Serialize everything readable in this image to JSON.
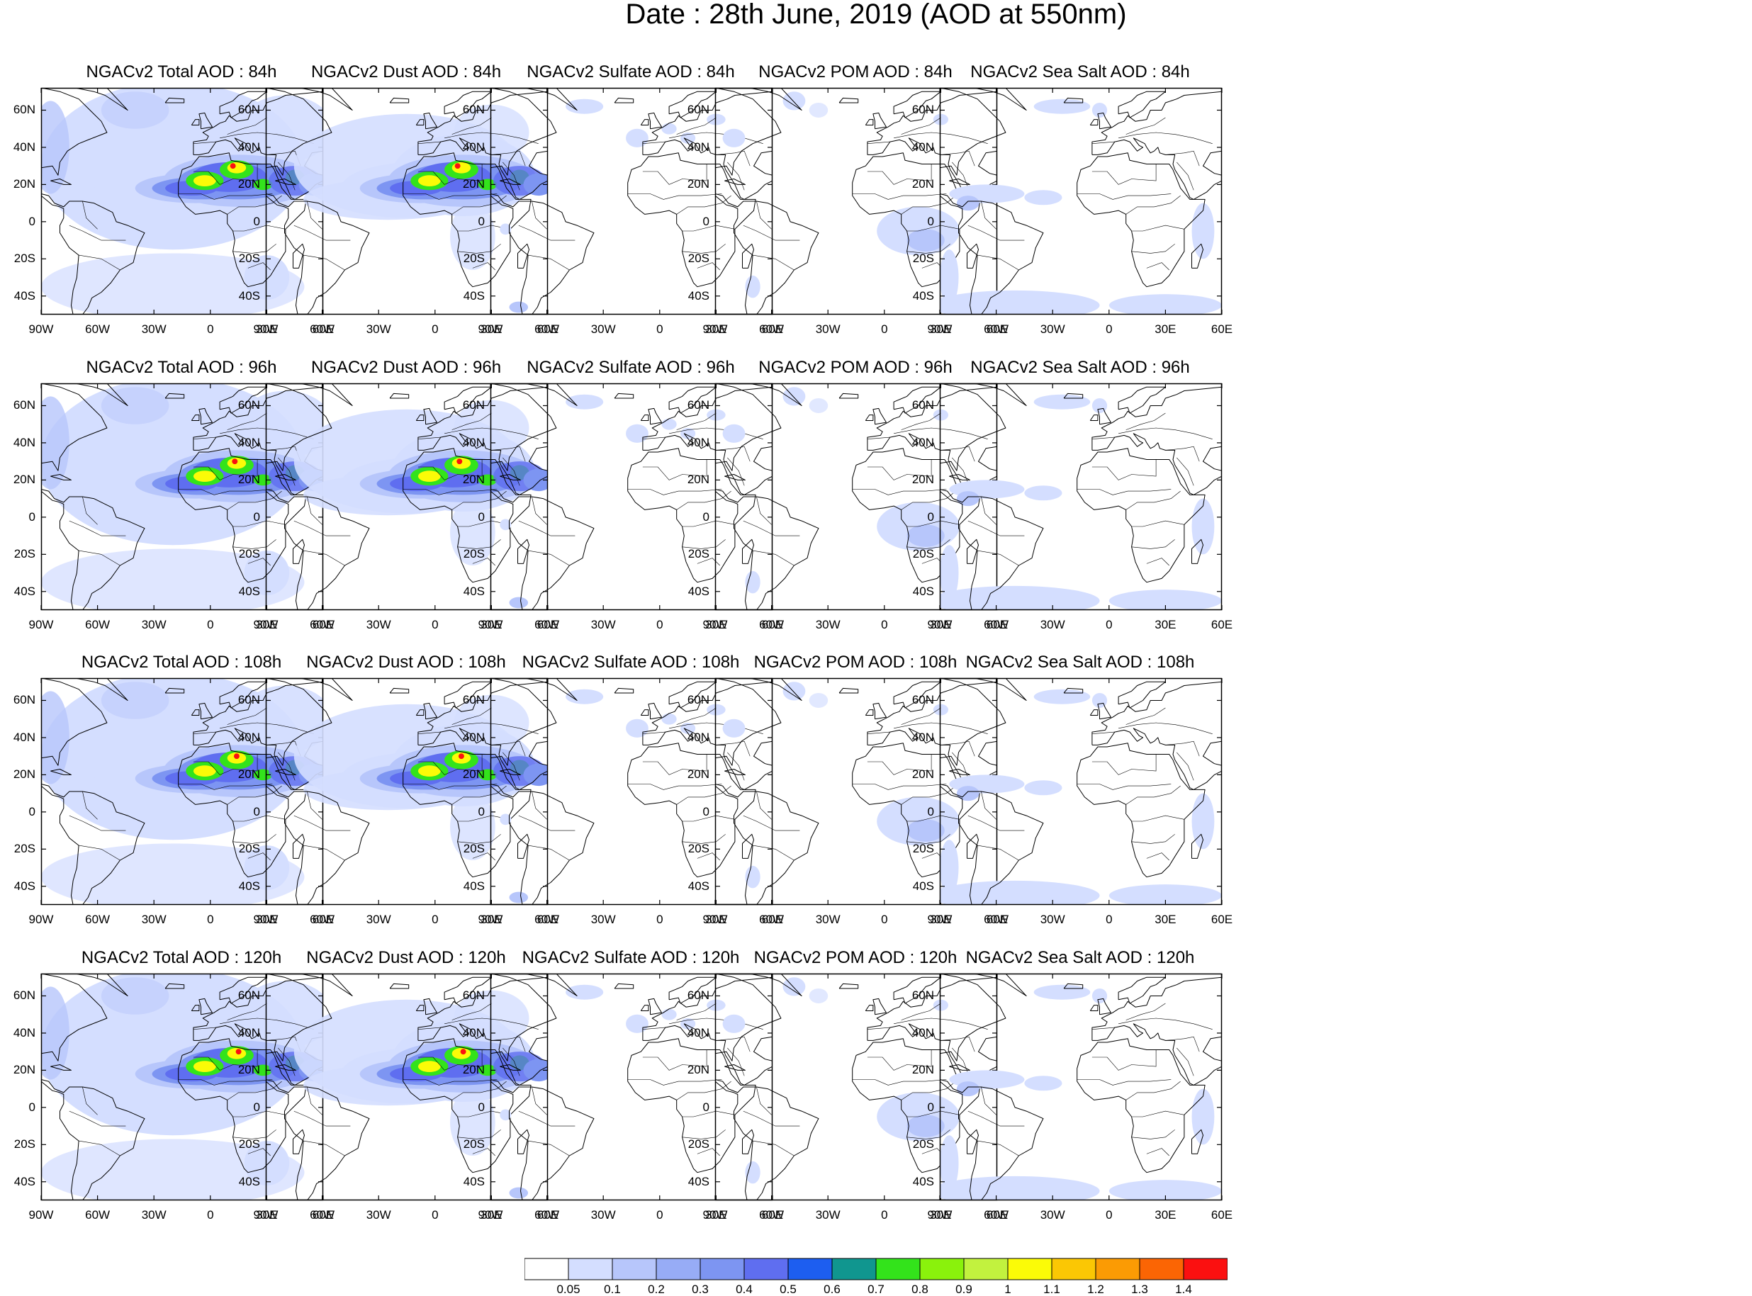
{
  "figure": {
    "title": "Date : 28th June, 2019 (AOD at 550nm)"
  },
  "rows": [
    "84h",
    "96h",
    "108h",
    "120h"
  ],
  "panel_titles": [
    [
      "NGACv2 Total AOD : 84h",
      "NGACv2 Dust AOD : 84h",
      "NGACv2 Sulfate AOD : 84h",
      "NGACv2 POM AOD : 84h",
      "NGACv2 Sea Salt AOD : 84h"
    ],
    [
      "NGACv2 Total AOD : 96h",
      "NGACv2 Dust AOD : 96h",
      "NGACv2 Sulfate AOD : 96h",
      "NGACv2 POM AOD : 96h",
      "NGACv2 Sea Salt AOD : 96h"
    ],
    [
      "NGACv2 Total AOD : 108h",
      "NGACv2 Dust AOD : 108h",
      "NGACv2 Sulfate AOD : 108h",
      "NGACv2 POM AOD : 108h",
      "NGACv2 Sea Salt AOD : 108h"
    ],
    [
      "NGACv2 Total AOD : 120h",
      "NGACv2 Dust AOD : 120h",
      "NGACv2 Sulfate AOD : 120h",
      "NGACv2 POM AOD : 120h",
      "NGACv2 Sea Salt  AOD : 120h"
    ]
  ],
  "map_extent": {
    "lon": [
      -90,
      60
    ],
    "lat": [
      -50,
      72
    ]
  },
  "lat_ticks": [
    {
      "value": 60,
      "label": "60N"
    },
    {
      "value": 40,
      "label": "40N"
    },
    {
      "value": 20,
      "label": "20N"
    },
    {
      "value": 0,
      "label": "0"
    },
    {
      "value": -20,
      "label": "20S"
    },
    {
      "value": -40,
      "label": "40S"
    }
  ],
  "lon_ticks": [
    {
      "value": -90,
      "label": "90W"
    },
    {
      "value": -60,
      "label": "60W"
    },
    {
      "value": -30,
      "label": "30W"
    },
    {
      "value": 0,
      "label": "0"
    },
    {
      "value": 30,
      "label": "30E"
    },
    {
      "value": 60,
      "label": "60E"
    }
  ],
  "colorbar": {
    "labels": [
      "0.05",
      "0.1",
      "0.2",
      "0.3",
      "0.4",
      "0.5",
      "0.6",
      "0.7",
      "0.8",
      "0.9",
      "1",
      "1.1",
      "1.2",
      "1.3",
      "1.4"
    ],
    "colors": [
      "#ffffff",
      "#d4deff",
      "#b7c6fb",
      "#97acf6",
      "#7d95f2",
      "#5f6ef0",
      "#1d5ef0",
      "#10968f",
      "#33e31b",
      "#8af20c",
      "#c2f23e",
      "#fbfb07",
      "#fbc704",
      "#fb9b04",
      "#fb6504",
      "#fb1010"
    ]
  },
  "field_colors": {
    "land": "#ffffff",
    "coast": "#000000",
    "light": "#d4deff",
    "mid": "#b7c6fb",
    "dark": "#7d95f2",
    "deep": "#5f6ef0",
    "green": "#33e31b",
    "yellow": "#fbfb07",
    "red": "#fb1010"
  }
}
